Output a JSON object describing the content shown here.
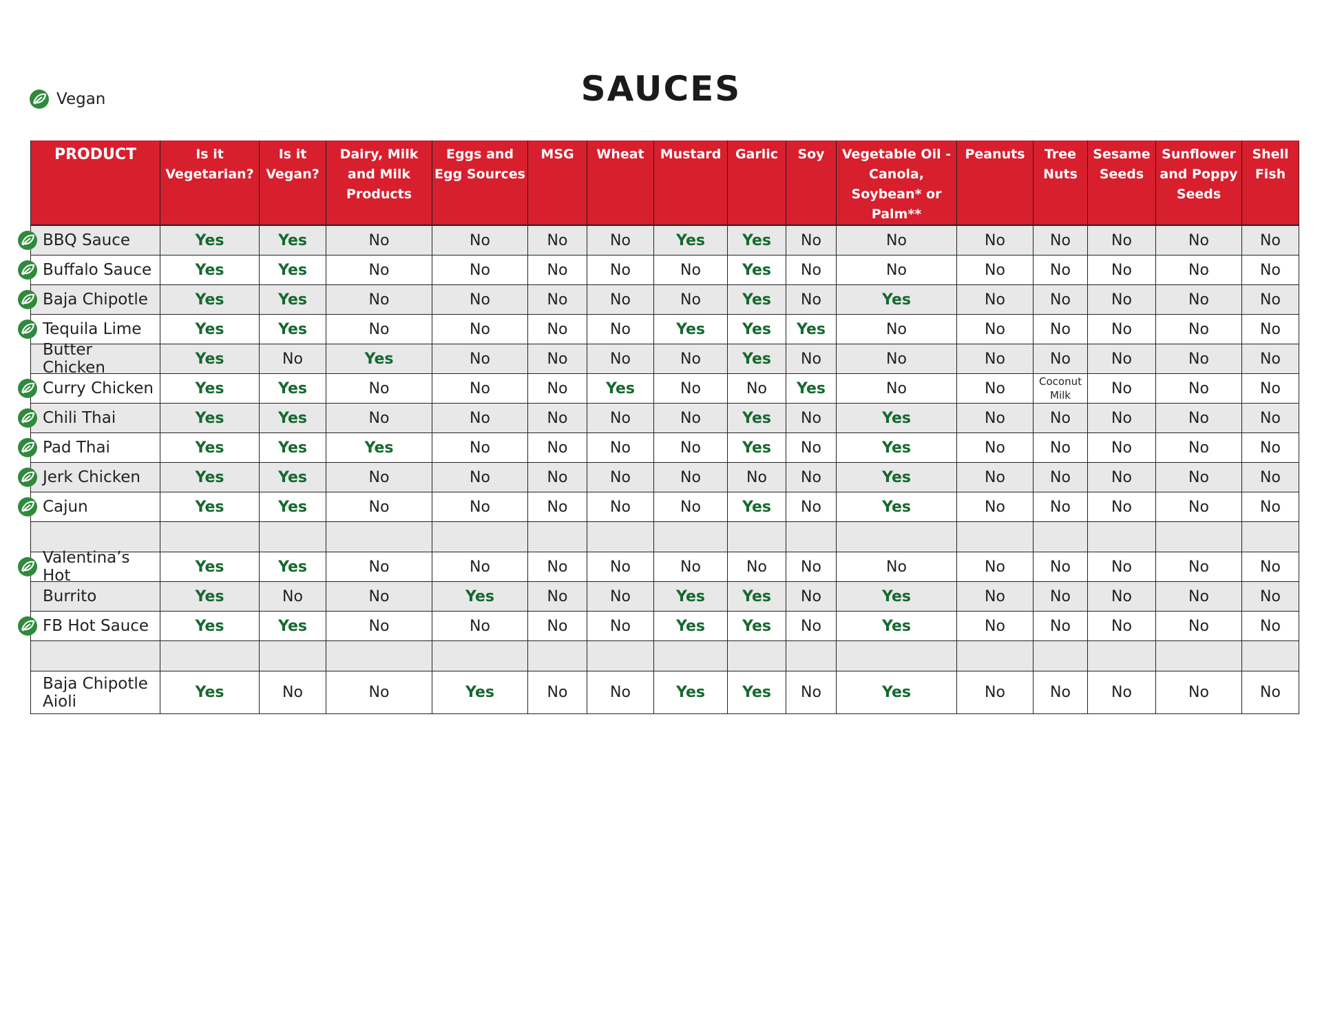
{
  "header": {
    "title": "SAUCES",
    "legend": {
      "label": "Vegan",
      "color": "#2f8a3c"
    }
  },
  "highlight": {
    "text": "Yes",
    "color": "#16692f"
  },
  "table": {
    "header_color": "#d71f2e",
    "columns": [
      "PRODUCT",
      "Is it Vegetarian?",
      "Is it Vegan?",
      "Dairy, Milk and Milk Products",
      "Eggs and Egg Sources",
      "MSG",
      "Wheat",
      "Mustard",
      "Garlic",
      "Soy",
      "Vegetable Oil - Canola, Soybean* or Palm**",
      "Peanuts",
      "Tree Nuts",
      "Sesame Seeds",
      "Sunflower and Poppy Seeds",
      "Shell Fish"
    ],
    "groups": [
      {
        "rows": [
          {
            "product": "BBQ Sauce",
            "vegan": true,
            "cells": [
              "Yes",
              "Yes",
              "No",
              "No",
              "No",
              "No",
              "Yes",
              "Yes",
              "No",
              "No",
              "No",
              "No",
              "No",
              "No",
              "No"
            ]
          },
          {
            "product": "Buffalo Sauce",
            "vegan": true,
            "cells": [
              "Yes",
              "Yes",
              "No",
              "No",
              "No",
              "No",
              "No",
              "Yes",
              "No",
              "No",
              "No",
              "No",
              "No",
              "No",
              "No"
            ]
          },
          {
            "product": "Baja Chipotle",
            "vegan": true,
            "cells": [
              "Yes",
              "Yes",
              "No",
              "No",
              "No",
              "No",
              "No",
              "Yes",
              "No",
              "Yes",
              "No",
              "No",
              "No",
              "No",
              "No"
            ]
          },
          {
            "product": "Tequila Lime",
            "vegan": true,
            "cells": [
              "Yes",
              "Yes",
              "No",
              "No",
              "No",
              "No",
              "Yes",
              "Yes",
              "Yes",
              "No",
              "No",
              "No",
              "No",
              "No",
              "No"
            ]
          },
          {
            "product": "Butter Chicken",
            "vegan": false,
            "cells": [
              "Yes",
              "No",
              "Yes",
              "No",
              "No",
              "No",
              "No",
              "Yes",
              "No",
              "No",
              "No",
              "No",
              "No",
              "No",
              "No"
            ]
          },
          {
            "product": "Curry Chicken",
            "vegan": true,
            "cells": [
              "Yes",
              "Yes",
              "No",
              "No",
              "No",
              "Yes",
              "No",
              "No",
              "Yes",
              "No",
              "No",
              "Coconut Milk",
              "No",
              "No",
              "No"
            ]
          },
          {
            "product": "Chili Thai",
            "vegan": true,
            "cells": [
              "Yes",
              "Yes",
              "No",
              "No",
              "No",
              "No",
              "No",
              "Yes",
              "No",
              "Yes",
              "No",
              "No",
              "No",
              "No",
              "No"
            ]
          },
          {
            "product": "Pad Thai",
            "vegan": true,
            "cells": [
              "Yes",
              "Yes",
              "Yes",
              "No",
              "No",
              "No",
              "No",
              "Yes",
              "No",
              "Yes",
              "No",
              "No",
              "No",
              "No",
              "No"
            ]
          },
          {
            "product": "Jerk Chicken",
            "vegan": true,
            "cells": [
              "Yes",
              "Yes",
              "No",
              "No",
              "No",
              "No",
              "No",
              "No",
              "No",
              "Yes",
              "No",
              "No",
              "No",
              "No",
              "No"
            ]
          },
          {
            "product": "Cajun",
            "vegan": true,
            "cells": [
              "Yes",
              "Yes",
              "No",
              "No",
              "No",
              "No",
              "No",
              "Yes",
              "No",
              "Yes",
              "No",
              "No",
              "No",
              "No",
              "No"
            ]
          }
        ]
      },
      {
        "rows": [
          {
            "product": "Valentina’s Hot",
            "vegan": true,
            "cells": [
              "Yes",
              "Yes",
              "No",
              "No",
              "No",
              "No",
              "No",
              "No",
              "No",
              "No",
              "No",
              "No",
              "No",
              "No",
              "No"
            ]
          },
          {
            "product": "Burrito",
            "vegan": false,
            "cells": [
              "Yes",
              "No",
              "No",
              "Yes",
              "No",
              "No",
              "Yes",
              "Yes",
              "No",
              "Yes",
              "No",
              "No",
              "No",
              "No",
              "No"
            ]
          },
          {
            "product": "FB Hot Sauce",
            "vegan": true,
            "cells": [
              "Yes",
              "Yes",
              "No",
              "No",
              "No",
              "No",
              "Yes",
              "Yes",
              "No",
              "Yes",
              "No",
              "No",
              "No",
              "No",
              "No"
            ]
          }
        ]
      },
      {
        "rows": [
          {
            "product": "Baja Chipotle Aioli",
            "vegan": false,
            "cells": [
              "Yes",
              "No",
              "No",
              "Yes",
              "No",
              "No",
              "Yes",
              "Yes",
              "No",
              "Yes",
              "No",
              "No",
              "No",
              "No",
              "No"
            ]
          }
        ]
      }
    ]
  }
}
